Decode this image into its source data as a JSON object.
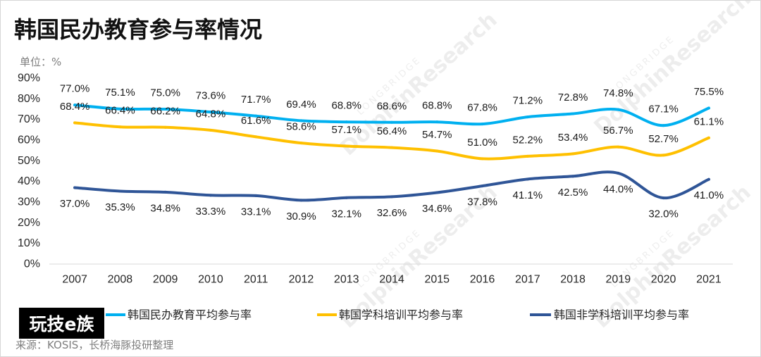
{
  "source": "来源：KOSIS，长桥海豚投研整理",
  "overlay_logo": "玩技e族",
  "watermark": {
    "brand": "LONGBRIDGE",
    "name": "DolphinResearch"
  },
  "chart_data": {
    "type": "line",
    "title": "韩国民办教育参与率情况",
    "ylabel": "单位：%",
    "xlabel": "",
    "smooth": true,
    "grid": false,
    "legend": "bottom",
    "ylim": [
      0,
      90
    ],
    "yticks": [
      0,
      10,
      20,
      30,
      40,
      50,
      60,
      70,
      80,
      90
    ],
    "ytick_labels": [
      "0%",
      "10%",
      "20%",
      "30%",
      "40%",
      "50%",
      "60%",
      "70%",
      "80%",
      "90%"
    ],
    "categories": [
      "2007",
      "2008",
      "2009",
      "2010",
      "2011",
      "2012",
      "2013",
      "2014",
      "2015",
      "2016",
      "2017",
      "2018",
      "2019",
      "2020",
      "2021"
    ],
    "series": [
      {
        "name": "韩国民办教育平均参与率",
        "color": "#00B0F0",
        "label_position": "above",
        "values": [
          77.0,
          75.1,
          75.0,
          73.6,
          71.7,
          69.4,
          68.8,
          68.6,
          68.8,
          67.8,
          71.2,
          72.8,
          74.8,
          67.1,
          75.5
        ],
        "data_labels": [
          "77.0%",
          "75.1%",
          "75.0%",
          "73.6%",
          "71.7%",
          "69.4%",
          "68.8%",
          "68.6%",
          "68.8%",
          "67.8%",
          "71.2%",
          "72.8%",
          "74.8%",
          "67.1%",
          "75.5%"
        ]
      },
      {
        "name": "韩国学科培训平均参与率",
        "color": "#FFC000",
        "label_position": "above",
        "values": [
          68.4,
          66.4,
          66.2,
          64.8,
          61.6,
          58.6,
          57.1,
          56.4,
          54.7,
          51.0,
          52.2,
          53.4,
          56.7,
          52.7,
          61.1
        ],
        "data_labels": [
          "68.4%",
          "66.4%",
          "66.2%",
          "64.8%",
          "61.6%",
          "58.6%",
          "57.1%",
          "56.4%",
          "54.7%",
          "51.0%",
          "52.2%",
          "53.4%",
          "56.7%",
          "52.7%",
          "61.1%"
        ]
      },
      {
        "name": "韩国非学科培训平均参与率",
        "color": "#2F5597",
        "label_position": "below",
        "values": [
          37.0,
          35.3,
          34.8,
          33.3,
          33.1,
          30.9,
          32.1,
          32.6,
          34.6,
          37.8,
          41.1,
          42.5,
          44.0,
          32.0,
          41.0
        ],
        "data_labels": [
          "37.0%",
          "35.3%",
          "34.8%",
          "33.3%",
          "33.1%",
          "30.9%",
          "32.1%",
          "32.6%",
          "34.6%",
          "37.8%",
          "41.1%",
          "42.5%",
          "44.0%",
          "32.0%",
          "41.0%"
        ]
      }
    ]
  }
}
